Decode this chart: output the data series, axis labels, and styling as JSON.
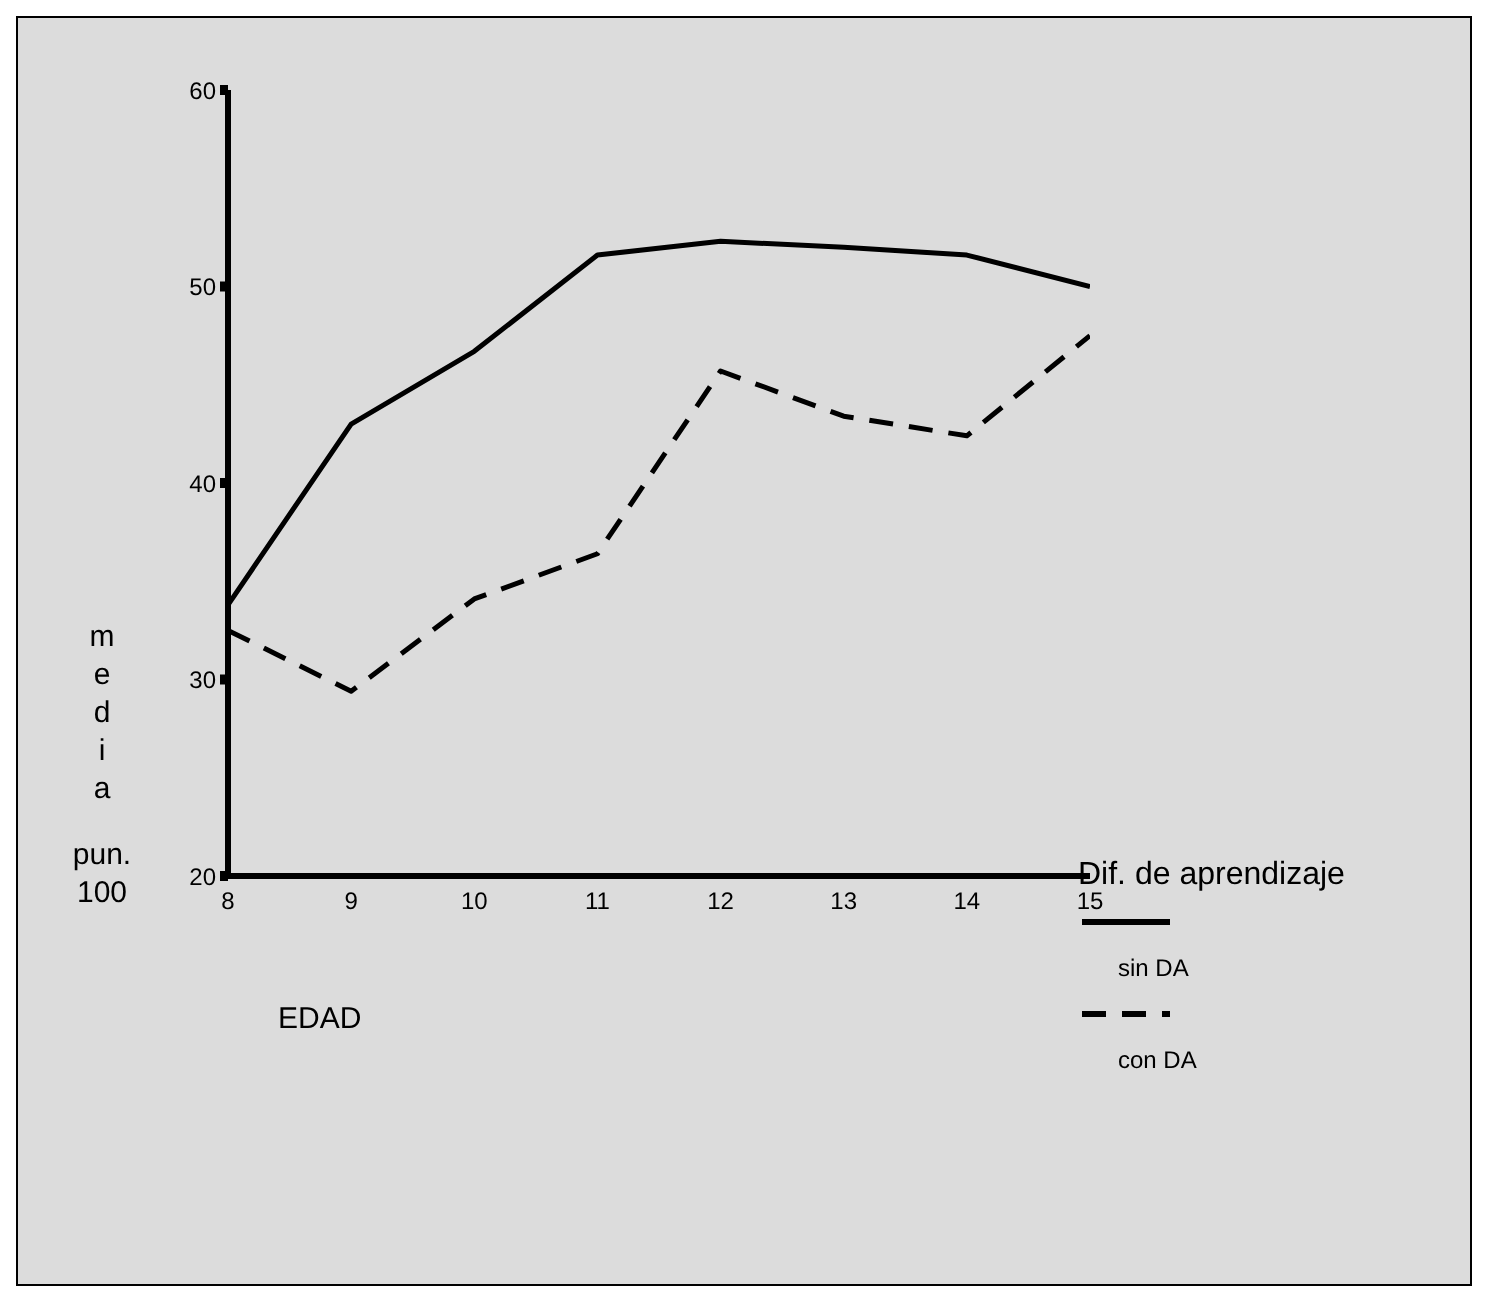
{
  "chart_data": {
    "type": "line",
    "xlabel": "EDAD",
    "ylabel": "media pun. 100",
    "legend_title": "Dif. de aprendizaje",
    "legend": "right",
    "marker": "none",
    "grid": false,
    "x": [
      8,
      9,
      10,
      11,
      12,
      13,
      14,
      15
    ],
    "xlim": [
      8,
      15
    ],
    "xticks": [
      8,
      9,
      10,
      11,
      12,
      13,
      14,
      15
    ],
    "ylim": [
      20,
      60
    ],
    "yticks": [
      20,
      30,
      40,
      50,
      60
    ],
    "series": [
      {
        "name": "sin DA",
        "color": "#000000",
        "line_style": "solid",
        "values": [
          33.8,
          43.0,
          46.7,
          51.6,
          52.3,
          52.0,
          51.6,
          50.0
        ]
      },
      {
        "name": "con DA",
        "color": "#000000",
        "line_style": "dashed",
        "values": [
          32.5,
          29.4,
          34.1,
          36.4,
          45.7,
          43.4,
          42.4,
          47.5
        ]
      }
    ]
  }
}
